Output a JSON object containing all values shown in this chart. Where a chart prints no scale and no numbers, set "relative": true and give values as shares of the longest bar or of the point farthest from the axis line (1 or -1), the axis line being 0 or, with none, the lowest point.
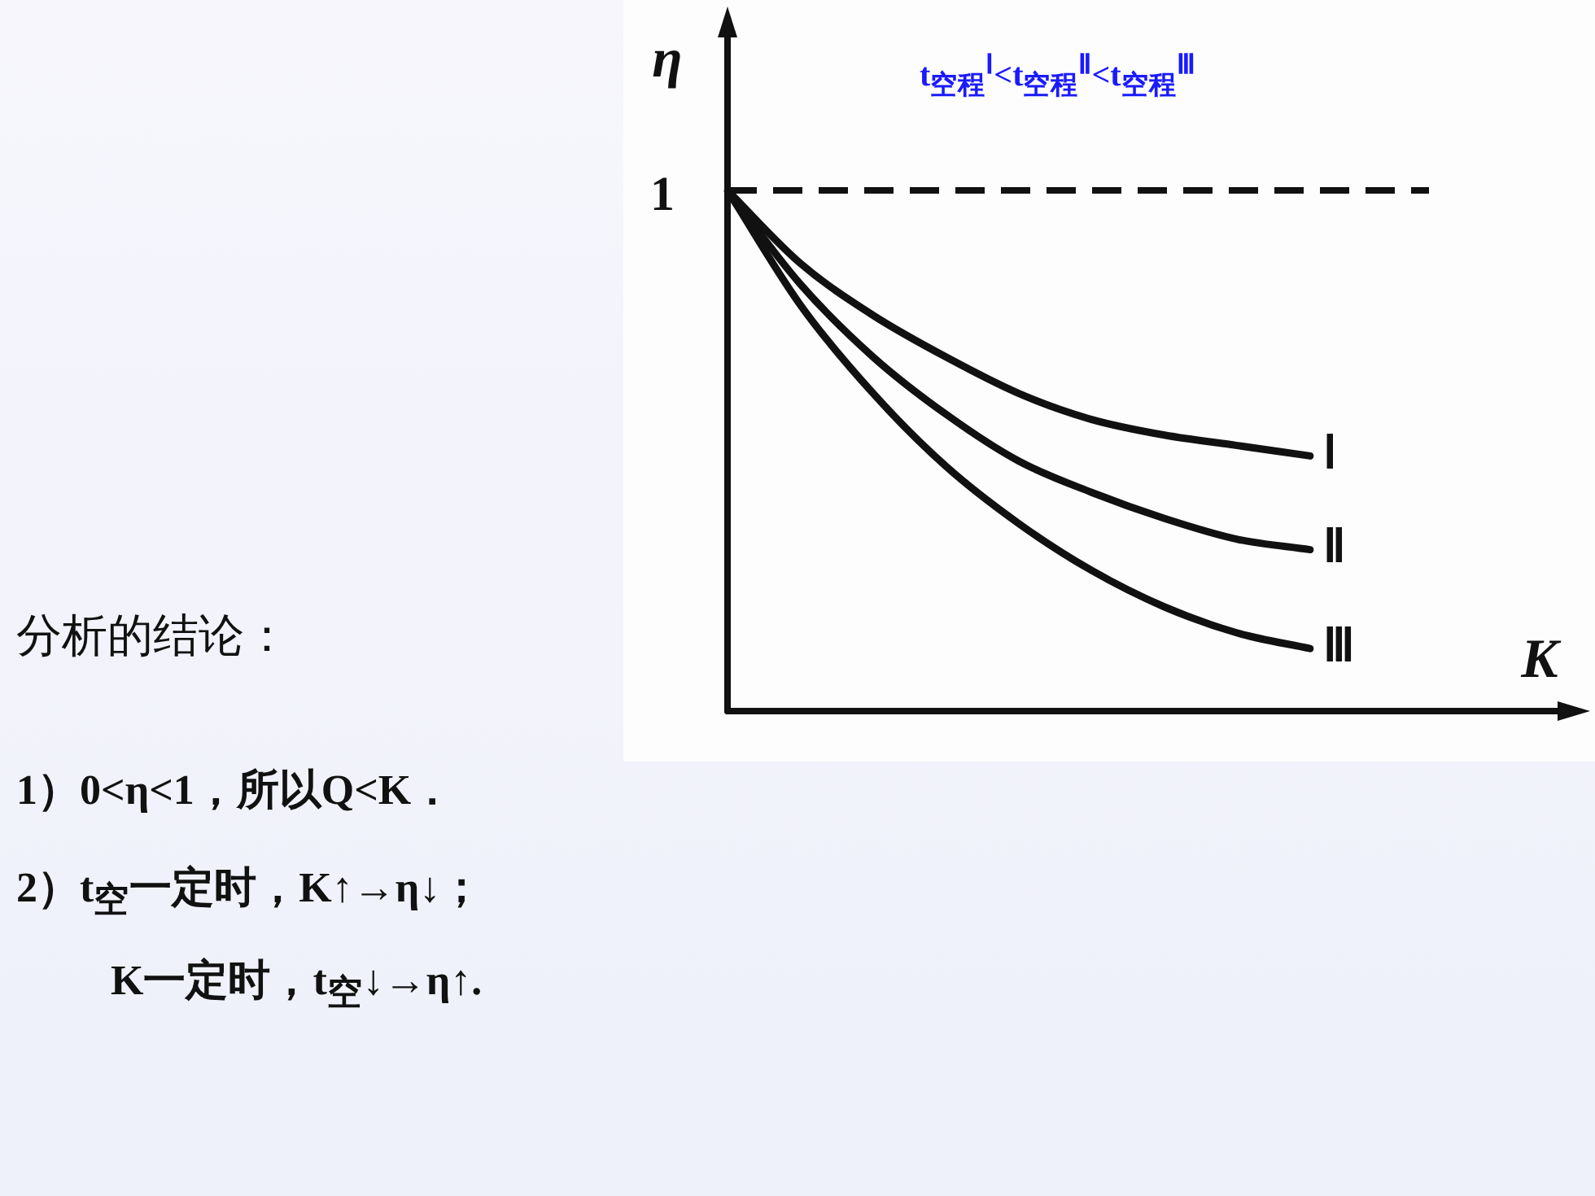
{
  "chart_data": {
    "type": "line",
    "relative": true,
    "xlabel": "K",
    "ylabel": "η",
    "categories": [
      null,
      null,
      null,
      null,
      null,
      null,
      null,
      null,
      null
    ],
    "series": [
      {
        "name": "Ⅰ",
        "color": "#111111",
        "values": [
          1,
          0.86,
          0.76,
          0.68,
          0.61,
          0.56,
          0.53,
          0.51,
          0.49
        ]
      },
      {
        "name": "Ⅱ",
        "color": "#111111",
        "values": [
          1,
          0.82,
          0.68,
          0.57,
          0.48,
          0.42,
          0.37,
          0.33,
          0.31
        ]
      },
      {
        "name": "Ⅲ",
        "color": "#111111",
        "values": [
          1,
          0.78,
          0.61,
          0.47,
          0.36,
          0.27,
          0.2,
          0.15,
          0.12
        ]
      }
    ],
    "ref_lines": [
      {
        "axis": "y",
        "value": 1,
        "label": "1",
        "line_style": "dashed",
        "color": "#111111"
      }
    ],
    "annotations": [
      "t$_{空程}$$^{Ⅰ}$<t$_{空程}$$^{Ⅱ}$<t$_{空程}$$^{Ⅲ}$",
      "分析的结论：",
      "1）0<η<1，所以Q<K．",
      "2）t$_{空}$一定时，K↑→η↓；",
      "K一定时，t$_{空}$↓→η↑."
    ],
    "legend": false,
    "marker": "none",
    "line_style": "solid"
  }
}
